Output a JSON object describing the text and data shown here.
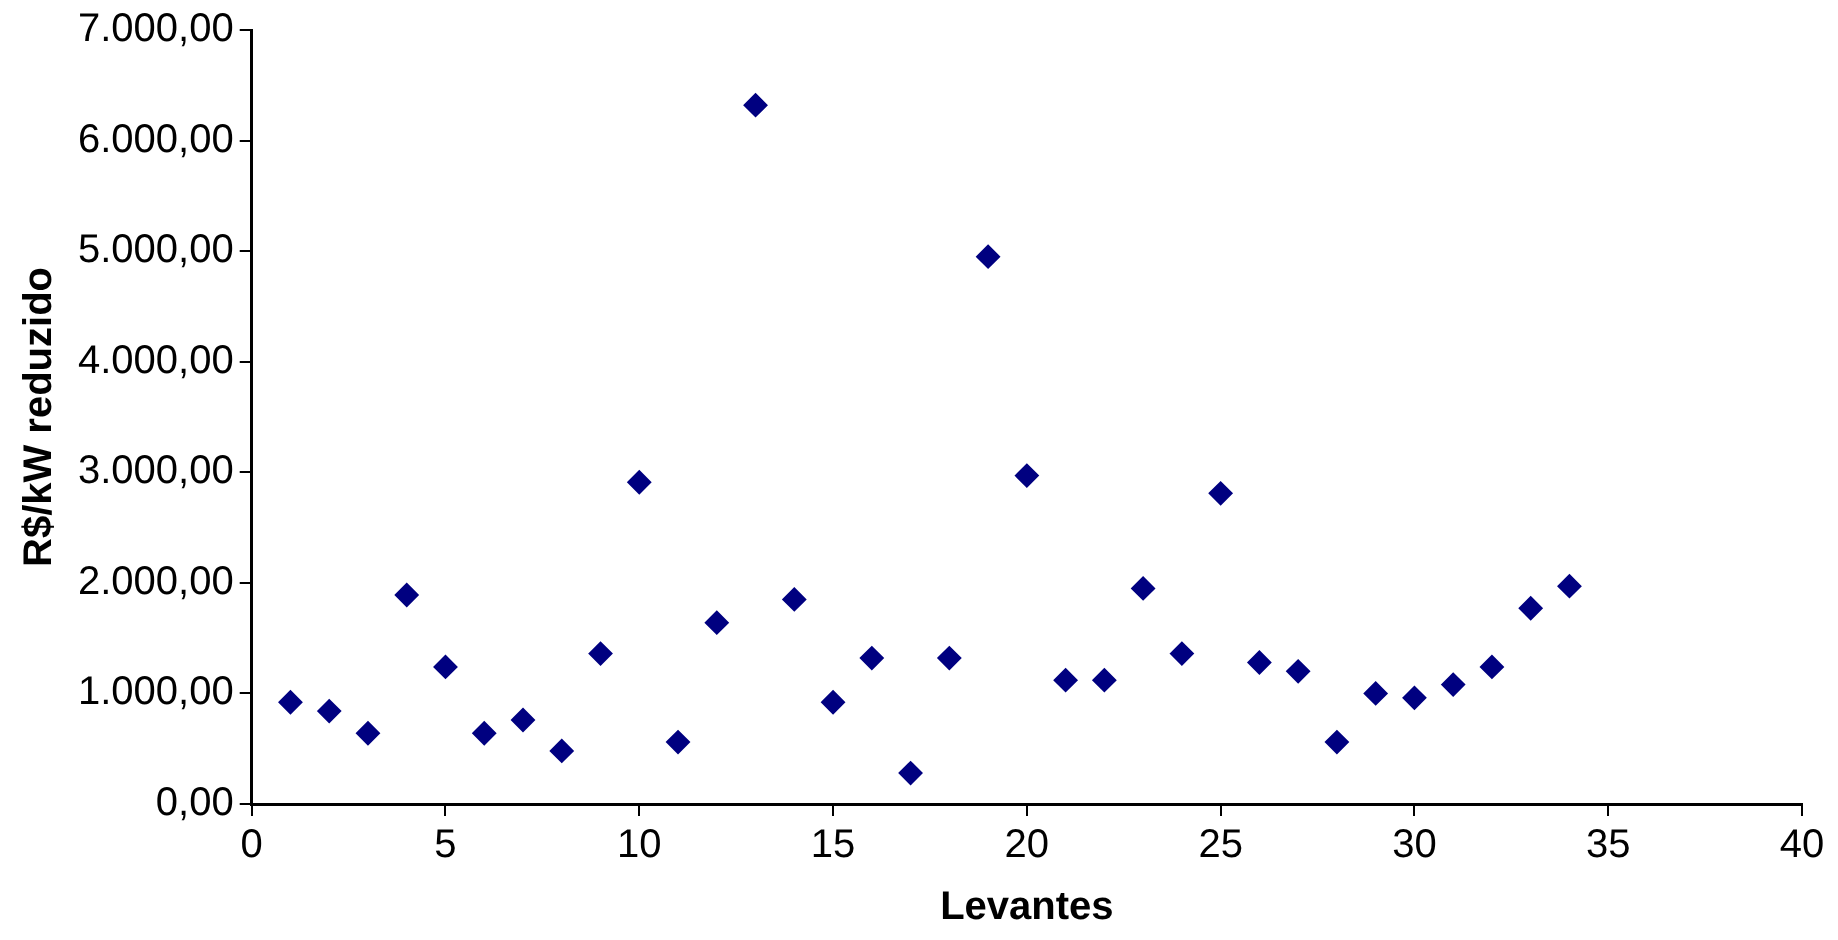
{
  "chart_data": {
    "type": "scatter",
    "xlabel": "Levantes",
    "ylabel": "R$/kW reduzido",
    "x": [
      1,
      2,
      3,
      4,
      5,
      6,
      7,
      8,
      9,
      10,
      11,
      12,
      13,
      14,
      15,
      16,
      17,
      18,
      19,
      20,
      21,
      22,
      23,
      24,
      25,
      26,
      27,
      28,
      29,
      30,
      31,
      32,
      33,
      34
    ],
    "series": [
      {
        "color": "#000080",
        "values": [
          920,
          840,
          640,
          1890,
          1240,
          640,
          760,
          480,
          1360,
          2910,
          560,
          1640,
          6320,
          1850,
          920,
          1320,
          280,
          1320,
          4950,
          2970,
          1120,
          1120,
          1950,
          1360,
          2810,
          1280,
          1200,
          560,
          1000,
          960,
          1080,
          1240,
          1770,
          1970
        ]
      }
    ],
    "xlim": [
      0,
      40
    ],
    "xticks": [
      0,
      5,
      10,
      15,
      20,
      25,
      30,
      35,
      40
    ],
    "ylim": [
      0,
      7000
    ],
    "yticks": [
      {
        "value": 0,
        "label": "0,00"
      },
      {
        "value": 1000,
        "label": "1.000,00"
      },
      {
        "value": 2000,
        "label": "2.000,00"
      },
      {
        "value": 3000,
        "label": "3.000,00"
      },
      {
        "value": 4000,
        "label": "4.000,00"
      },
      {
        "value": 5000,
        "label": "5.000,00"
      },
      {
        "value": 6000,
        "label": "6.000,00"
      },
      {
        "value": 7000,
        "label": "7.000,00"
      }
    ],
    "grid": false,
    "legend": false,
    "marker": "diamond"
  }
}
